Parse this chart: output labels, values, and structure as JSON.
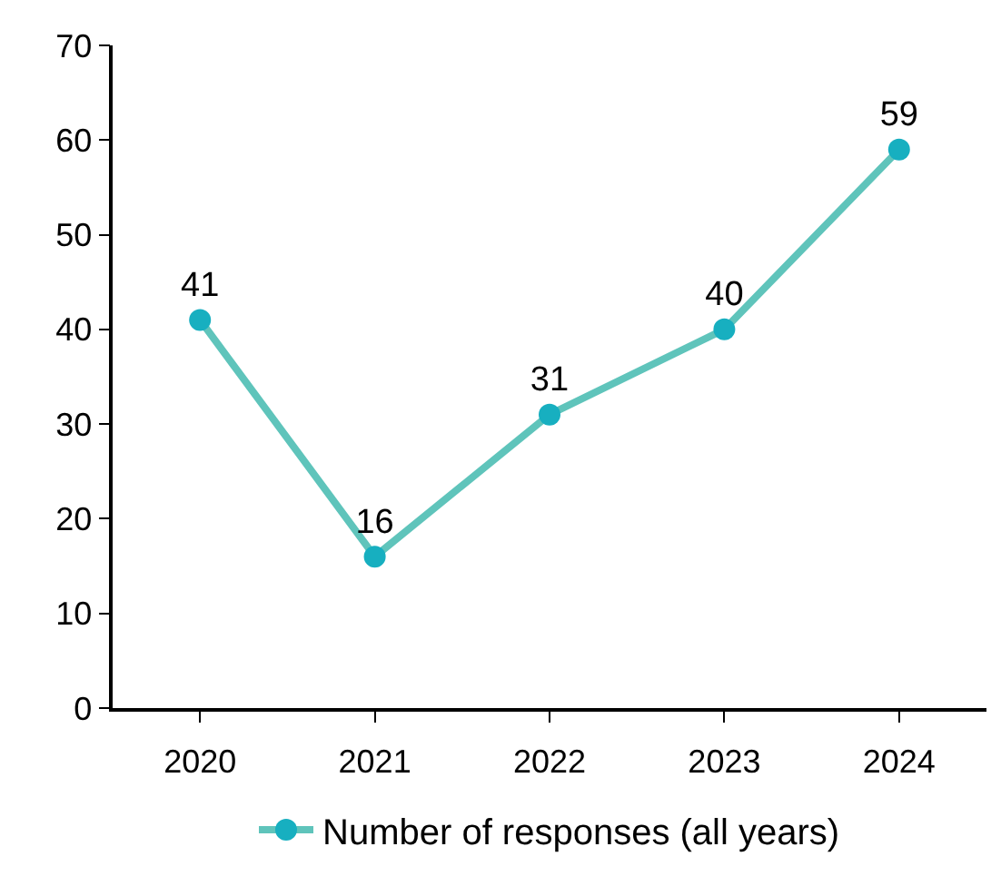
{
  "chart_data": {
    "type": "line",
    "categories": [
      "2020",
      "2021",
      "2022",
      "2023",
      "2024"
    ],
    "series": [
      {
        "name": "Number of responses (all years)",
        "color": "#5fc4bb",
        "colors": [
          "#17afc0",
          "#17afc0",
          "#17afc0",
          "#17afc0",
          "#17afc0"
        ],
        "values": [
          41,
          16,
          31,
          40,
          59
        ]
      }
    ],
    "ylim": [
      0,
      70
    ],
    "yticks": [
      0,
      10,
      20,
      30,
      40,
      50,
      60,
      70
    ],
    "data_labels": true,
    "legend": "bottom",
    "marker": "circle",
    "line_style": "solid"
  }
}
